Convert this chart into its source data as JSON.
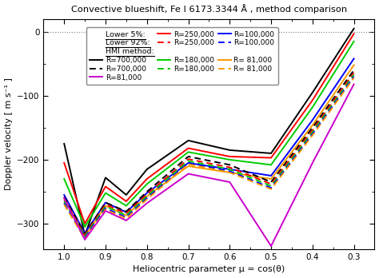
{
  "title": "Convective blueshift, Fe I 6173.3344 Å , method comparison",
  "xlabel": "Heliocentric parameter μ = cos(θ)",
  "ylabel": "Doppler velocity [ m s⁻¹ ]",
  "xlim": [
    1.05,
    0.25
  ],
  "ylim": [
    -340,
    20
  ],
  "yticks": [
    0,
    -100,
    -200,
    -300
  ],
  "xticks": [
    1.0,
    0.9,
    0.8,
    0.7,
    0.6,
    0.5,
    0.4,
    0.3
  ],
  "mu": [
    1.0,
    0.95,
    0.9,
    0.85,
    0.8,
    0.7,
    0.6,
    0.5,
    0.4,
    0.3
  ],
  "lower5_R700": [
    -175,
    -318,
    -228,
    -255,
    -215,
    -170,
    -185,
    -190,
    -95,
    5
  ],
  "lower5_R250": [
    -205,
    -300,
    -242,
    -265,
    -230,
    -182,
    -195,
    -197,
    -107,
    -3
  ],
  "lower5_R180": [
    -230,
    -305,
    -252,
    -272,
    -238,
    -188,
    -200,
    -208,
    -118,
    -15
  ],
  "lower5_R100": [
    -255,
    -315,
    -267,
    -282,
    -252,
    -205,
    -215,
    -225,
    -138,
    -42
  ],
  "lower5_R81": [
    -260,
    -320,
    -272,
    -287,
    -257,
    -210,
    -220,
    -230,
    -146,
    -52
  ],
  "lower92_R700": [
    -258,
    -316,
    -267,
    -281,
    -250,
    -195,
    -208,
    -235,
    -150,
    -60
  ],
  "lower92_R250": [
    -262,
    -318,
    -270,
    -284,
    -254,
    -199,
    -212,
    -238,
    -154,
    -64
  ],
  "lower92_R180": [
    -265,
    -320,
    -273,
    -287,
    -257,
    -202,
    -215,
    -241,
    -157,
    -67
  ],
  "lower92_R100": [
    -268,
    -322,
    -276,
    -290,
    -260,
    -205,
    -218,
    -244,
    -160,
    -70
  ],
  "lower92_R81": [
    -270,
    -324,
    -278,
    -292,
    -262,
    -207,
    -220,
    -246,
    -162,
    -72
  ],
  "hmi_R81": [
    -260,
    -325,
    -280,
    -295,
    -268,
    -222,
    -235,
    -335,
    -205,
    -82
  ],
  "colors": [
    "#000000",
    "#ff0000",
    "#00cc00",
    "#0000ff",
    "#ff9900"
  ],
  "color_hmi": "#cc00cc",
  "background": "#ffffff"
}
